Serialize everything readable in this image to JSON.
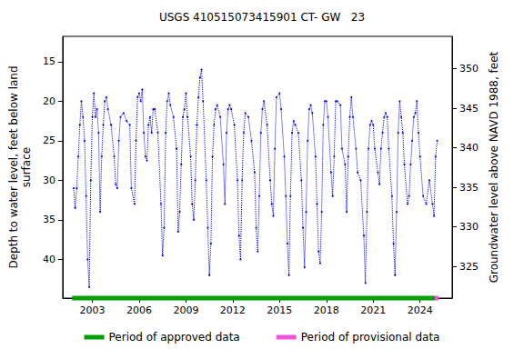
{
  "chart_data": {
    "type": "line",
    "title": "USGS 410515073415901 CT- GW   23",
    "y_label": "Depth to water level, feet below land\nsurface",
    "y2_label": "Groundwater level above NAVD 1988, feet",
    "xlim": [
      2001.1,
      2026.06
    ],
    "xticks": [
      2003,
      2006,
      2009,
      2012,
      2015,
      2018,
      2021,
      2024
    ],
    "ylim": [
      11.8,
      44.9
    ],
    "yticks": [
      15,
      20,
      25,
      30,
      35,
      40
    ],
    "y2lim": [
      321.0,
      354.1
    ],
    "y2ticks": [
      325,
      330,
      335,
      340,
      345,
      350
    ],
    "grid": false,
    "legend": "bottom",
    "series": [
      {
        "name": "Depth to water level",
        "color": "#0000ee",
        "marker": "circle",
        "line_style": "dotted",
        "x": [
          2001.8,
          2001.9,
          2002.0,
          2002.1,
          2002.2,
          2002.3,
          2002.4,
          2002.5,
          2002.6,
          2002.7,
          2002.8,
          2002.9,
          2003.0,
          2003.1,
          2003.2,
          2003.3,
          2003.4,
          2003.5,
          2003.6,
          2003.7,
          2003.8,
          2003.9,
          2004.0,
          2004.2,
          2004.4,
          2004.5,
          2004.6,
          2004.7,
          2004.8,
          2005.0,
          2005.2,
          2005.4,
          2005.5,
          2005.7,
          2005.8,
          2005.9,
          2006.0,
          2006.1,
          2006.2,
          2006.3,
          2006.4,
          2006.5,
          2006.6,
          2006.7,
          2006.8,
          2006.9,
          2007.0,
          2007.2,
          2007.4,
          2007.5,
          2007.6,
          2007.7,
          2007.8,
          2007.9,
          2008.0,
          2008.2,
          2008.4,
          2008.5,
          2008.6,
          2008.7,
          2008.8,
          2008.9,
          2009.0,
          2009.1,
          2009.3,
          2009.4,
          2009.5,
          2009.6,
          2009.7,
          2009.8,
          2009.9,
          2010.0,
          2010.1,
          2010.3,
          2010.4,
          2010.5,
          2010.6,
          2010.7,
          2010.8,
          2010.9,
          2011.0,
          2011.2,
          2011.4,
          2011.5,
          2011.6,
          2011.7,
          2011.8,
          2011.9,
          2012.1,
          2012.3,
          2012.4,
          2012.5,
          2012.6,
          2012.7,
          2012.8,
          2013.0,
          2013.2,
          2013.4,
          2013.5,
          2013.6,
          2013.7,
          2013.8,
          2013.9,
          2014.0,
          2014.2,
          2014.4,
          2014.5,
          2014.6,
          2014.7,
          2014.8,
          2015.0,
          2015.1,
          2015.3,
          2015.4,
          2015.5,
          2015.6,
          2015.7,
          2015.8,
          2015.9,
          2016.0,
          2016.2,
          2016.4,
          2016.5,
          2016.6,
          2016.7,
          2016.8,
          2016.9,
          2017.0,
          2017.1,
          2017.3,
          2017.4,
          2017.5,
          2017.6,
          2017.7,
          2017.8,
          2017.9,
          2018.0,
          2018.1,
          2018.3,
          2018.4,
          2018.5,
          2018.6,
          2018.7,
          2018.9,
          2019.0,
          2019.2,
          2019.3,
          2019.4,
          2019.5,
          2019.6,
          2019.7,
          2019.9,
          2020.0,
          2020.2,
          2020.4,
          2020.5,
          2020.6,
          2020.7,
          2020.8,
          2020.9,
          2021.0,
          2021.1,
          2021.3,
          2021.4,
          2021.5,
          2021.6,
          2021.7,
          2021.8,
          2021.9,
          2022.0,
          2022.2,
          2022.3,
          2022.4,
          2022.5,
          2022.6,
          2022.7,
          2022.8,
          2022.9,
          2023.0,
          2023.2,
          2023.3,
          2023.4,
          2023.5,
          2023.6,
          2023.7,
          2023.8,
          2023.9,
          2024.0,
          2024.2,
          2024.4,
          2024.6,
          2024.8,
          2024.9,
          2025.0,
          2025.1
        ],
        "values": [
          31,
          33.5,
          31,
          27,
          23,
          20,
          22,
          25,
          32,
          40,
          43.5,
          30,
          22,
          19,
          22,
          21,
          24,
          34,
          27,
          23,
          20,
          19.5,
          21,
          23,
          27,
          30.5,
          31,
          25,
          22,
          21.5,
          22.5,
          23,
          31,
          33,
          25,
          19.5,
          19,
          20,
          18.5,
          24,
          27,
          27.5,
          23,
          22,
          24,
          21,
          21,
          24,
          33,
          39.5,
          36,
          24,
          20,
          19,
          20.5,
          22,
          26,
          36.5,
          34,
          28,
          22,
          21,
          19,
          22,
          27,
          33,
          35,
          30,
          23,
          19.5,
          17,
          16,
          20,
          30,
          36,
          42,
          38,
          27,
          23,
          21,
          20.5,
          22,
          28,
          33,
          24,
          21,
          20.5,
          21,
          23,
          30,
          37,
          40,
          30,
          24,
          21.5,
          22,
          25,
          29,
          36,
          39,
          32,
          24,
          21,
          20,
          23,
          30,
          33,
          34.5,
          26,
          19.5,
          19,
          21,
          27,
          32,
          38,
          42,
          32,
          24,
          22.5,
          23,
          24,
          30,
          36,
          41,
          34,
          25,
          21,
          20.5,
          21.5,
          27,
          33,
          39,
          40.5,
          34,
          23,
          20,
          20,
          22,
          29,
          32,
          27,
          20,
          20,
          20.5,
          26,
          28,
          34,
          27,
          22,
          19.5,
          22,
          26,
          29,
          30,
          37,
          43,
          34,
          26,
          23,
          22.5,
          23,
          26,
          29,
          30.5,
          26,
          24,
          22,
          21.5,
          22,
          26,
          32,
          38,
          42,
          34,
          24,
          20,
          22,
          24,
          28,
          33,
          32,
          28,
          25,
          22,
          21.5,
          20,
          24,
          27,
          32,
          33,
          30,
          33,
          34.5,
          27,
          25
        ]
      }
    ],
    "periods": [
      {
        "name": "Period of approved data",
        "color": "#00a000",
        "start": 2001.7,
        "end": 2024.95
      },
      {
        "name": "Period of provisional data",
        "color": "#ee55dd",
        "start": 2024.95,
        "end": 2025.2
      }
    ]
  }
}
